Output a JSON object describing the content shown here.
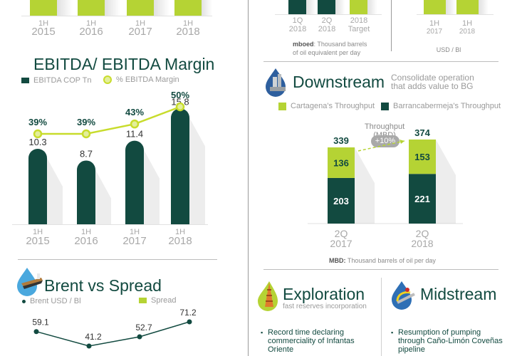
{
  "colors": {
    "dark_green": "#124a40",
    "lime": "#b5d334",
    "grey_text": "#a8a8a8",
    "divider": "#9a9a9a"
  },
  "top_left_chart": {
    "categories": [
      {
        "half": "1H",
        "year": "2015"
      },
      {
        "half": "1H",
        "year": "2016"
      },
      {
        "half": "1H",
        "year": "2017"
      },
      {
        "half": "1H",
        "year": "2018"
      }
    ]
  },
  "top_mid_chart": {
    "categories": [
      {
        "line1": "1Q",
        "line2": "2018"
      },
      {
        "line1": "2Q",
        "line2": "2018"
      },
      {
        "line1": "2018",
        "line2": "Target"
      }
    ],
    "note_bold": "mboed",
    "note_text": ": Thousand barrels",
    "note_text2": "of oil equivalent per day"
  },
  "top_right_chart": {
    "categories": [
      {
        "half": "1H",
        "year": "2017"
      },
      {
        "half": "1H",
        "year": "2018"
      }
    ],
    "unit": "USD / Bl"
  },
  "chart_data": [
    {
      "type": "bar",
      "title": "EBITDA/ EBITDA Margin",
      "categories": [
        "1H 2015",
        "1H 2016",
        "1H 2017",
        "1H 2018"
      ],
      "series": [
        {
          "name": "EBITDA COP Tn",
          "kind": "bar",
          "values": [
            10.3,
            8.7,
            11.4,
            15.8
          ],
          "labels": [
            "10.3",
            "8.7",
            "11.4",
            "15.8"
          ]
        },
        {
          "name": "% EBITDA Margin",
          "kind": "line",
          "values": [
            39,
            39,
            43,
            50
          ],
          "labels": [
            "39%",
            "39%",
            "43%",
            "50%"
          ]
        }
      ],
      "legend": [
        "EBITDA COP Tn",
        "% EBITDA Margin"
      ],
      "legend_position": "top-left",
      "tick_half": [
        "1H",
        "1H",
        "1H",
        "1H"
      ],
      "tick_year": [
        "2015",
        "2016",
        "2017",
        "2018"
      ],
      "ylim": [
        0,
        17
      ]
    },
    {
      "type": "bar",
      "stacked": true,
      "title": "Throughput (MBD)",
      "categories": [
        "2Q 2017",
        "2Q 2018"
      ],
      "tick_q": [
        "2Q",
        "2Q"
      ],
      "tick_year": [
        "2017",
        "2018"
      ],
      "series": [
        {
          "name": "Barrancabermeja's Throughput",
          "values": [
            203,
            221
          ]
        },
        {
          "name": "Cartagena's Throughput",
          "values": [
            136,
            153
          ]
        }
      ],
      "totals": [
        339,
        374
      ],
      "annotation": "+10%",
      "legend": [
        "Cartagena's Throughput",
        "Barrancabermeja's Throughput"
      ],
      "legend_position": "top",
      "note_bold": "MBD:",
      "note_text": " Thousand barrels of oil per day",
      "ylim": [
        0,
        400
      ]
    },
    {
      "type": "line",
      "title": "Brent vs Spread",
      "series": [
        {
          "name": "Brent USD / Bl",
          "values": [
            59.1,
            41.2,
            52.7,
            71.2
          ],
          "labels": [
            "59.1",
            "41.2",
            "52.7",
            "71.2"
          ]
        }
      ],
      "legend": [
        "Brent USD / Bl",
        "Spread"
      ],
      "legend_position": "top",
      "ylim": [
        30,
        80
      ]
    }
  ],
  "downstream": {
    "title": "Downstream",
    "subtitle1": "Consolidate operation",
    "subtitle2": "that adds value to BG"
  },
  "exploration": {
    "title": "Exploration",
    "subtitle": "fast reserves incorporation",
    "bullet": "Record time declaring commerciality of Infantas Oriente"
  },
  "midstream": {
    "title": "Midstream",
    "bullet": "Resumption of pumping through Caño-Limón Coveñas pipeline"
  }
}
